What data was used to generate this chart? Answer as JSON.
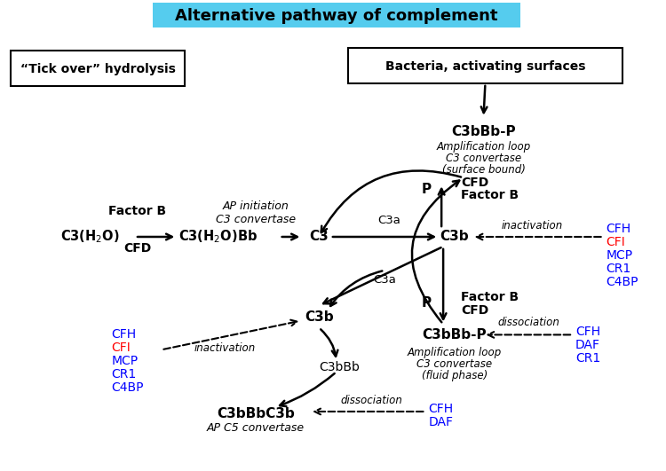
{
  "title": "Alternative pathway of complement",
  "title_bg": "#55CCEE",
  "bg_color": "#FFFFFF",
  "box1_text": "“Tick over” hydrolysis",
  "box2_text": "Bacteria, activating surfaces"
}
